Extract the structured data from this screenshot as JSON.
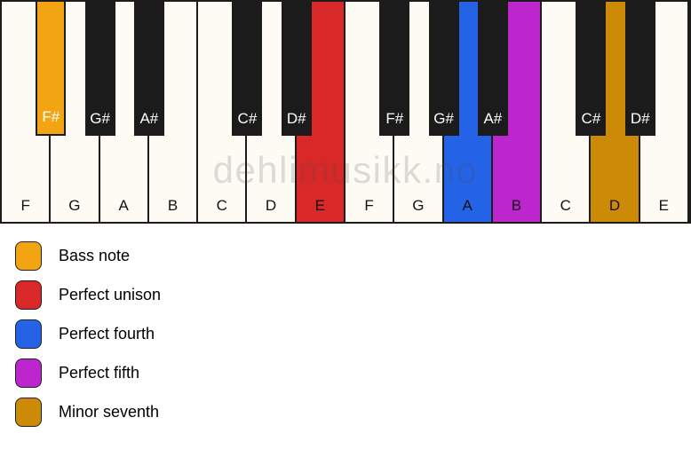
{
  "watermark": "dehlimusikk.no",
  "colors": {
    "white_key": "#fdfbf4",
    "black_key": "#1b1b1b",
    "key_border": "#1c1c1c",
    "bass": "#f2a412",
    "unison": "#d92828",
    "fourth": "#2563e6",
    "fifth": "#bc26cc",
    "seventh": "#cc8a06"
  },
  "keyboard": {
    "white_keys": [
      {
        "label": "F"
      },
      {
        "label": "G"
      },
      {
        "label": "A"
      },
      {
        "label": "B"
      },
      {
        "label": "C"
      },
      {
        "label": "D"
      },
      {
        "label": "E",
        "highlight": "unison"
      },
      {
        "label": "F"
      },
      {
        "label": "G"
      },
      {
        "label": "A",
        "highlight": "fourth"
      },
      {
        "label": "B",
        "highlight": "fifth"
      },
      {
        "label": "C"
      },
      {
        "label": "D",
        "highlight": "seventh"
      },
      {
        "label": "E"
      }
    ],
    "black_keys": [
      {
        "label": "F#",
        "boundary": 1,
        "highlight": "bass"
      },
      {
        "label": "G#",
        "boundary": 2
      },
      {
        "label": "A#",
        "boundary": 3
      },
      {
        "label": "C#",
        "boundary": 5
      },
      {
        "label": "D#",
        "boundary": 6
      },
      {
        "label": "F#",
        "boundary": 8
      },
      {
        "label": "G#",
        "boundary": 9
      },
      {
        "label": "A#",
        "boundary": 10
      },
      {
        "label": "C#",
        "boundary": 12
      },
      {
        "label": "D#",
        "boundary": 13
      }
    ]
  },
  "legend": [
    {
      "label": "Bass note",
      "color_key": "bass"
    },
    {
      "label": "Perfect unison",
      "color_key": "unison"
    },
    {
      "label": "Perfect fourth",
      "color_key": "fourth"
    },
    {
      "label": "Perfect fifth",
      "color_key": "fifth"
    },
    {
      "label": "Minor seventh",
      "color_key": "seventh"
    }
  ]
}
